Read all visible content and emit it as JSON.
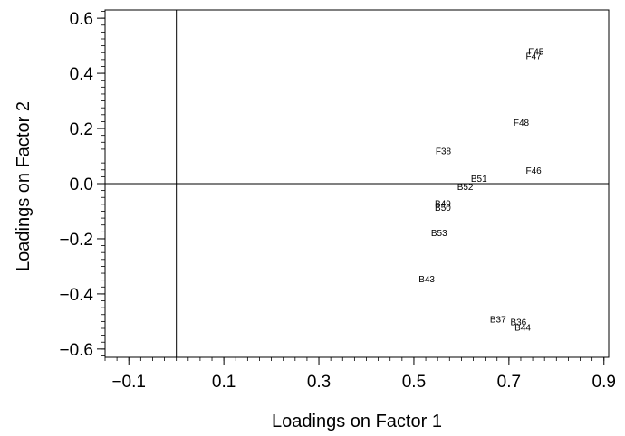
{
  "chart_data": {
    "type": "scatter",
    "title": "",
    "xlabel": "Loadings on Factor 1",
    "ylabel": "Loadings on Factor 2",
    "xlim": [
      -0.15,
      0.91
    ],
    "ylim": [
      -0.63,
      0.63
    ],
    "x_ticks": [
      -0.1,
      0.1,
      0.3,
      0.5,
      0.7,
      0.9
    ],
    "x_tick_labels": [
      "−0.1",
      "0.1",
      "0.3",
      "0.5",
      "0.7",
      "0.9"
    ],
    "y_ticks": [
      -0.6,
      -0.4,
      -0.2,
      0.0,
      0.2,
      0.4,
      0.6
    ],
    "y_tick_labels": [
      "−0.6",
      "−0.4",
      "−0.2",
      "0.0",
      "0.2",
      "0.4",
      "0.6"
    ],
    "reference_lines": {
      "x": 0.0,
      "y": 0.0
    },
    "grid": false,
    "points": [
      {
        "label": "F45",
        "x": 0.757,
        "y": 0.48
      },
      {
        "label": "F47",
        "x": 0.752,
        "y": 0.465
      },
      {
        "label": "F48",
        "x": 0.726,
        "y": 0.223
      },
      {
        "label": "F38",
        "x": 0.562,
        "y": 0.12
      },
      {
        "label": "F46",
        "x": 0.752,
        "y": 0.05
      },
      {
        "label": "B51",
        "x": 0.637,
        "y": 0.02
      },
      {
        "label": "B52",
        "x": 0.608,
        "y": -0.01
      },
      {
        "label": "B49",
        "x": 0.561,
        "y": -0.07
      },
      {
        "label": "B50",
        "x": 0.561,
        "y": -0.085
      },
      {
        "label": "B53",
        "x": 0.553,
        "y": -0.178
      },
      {
        "label": "B43",
        "x": 0.527,
        "y": -0.345
      },
      {
        "label": "B37",
        "x": 0.677,
        "y": -0.49
      },
      {
        "label": "B36",
        "x": 0.72,
        "y": -0.5
      },
      {
        "label": "B44",
        "x": 0.729,
        "y": -0.52
      }
    ]
  }
}
